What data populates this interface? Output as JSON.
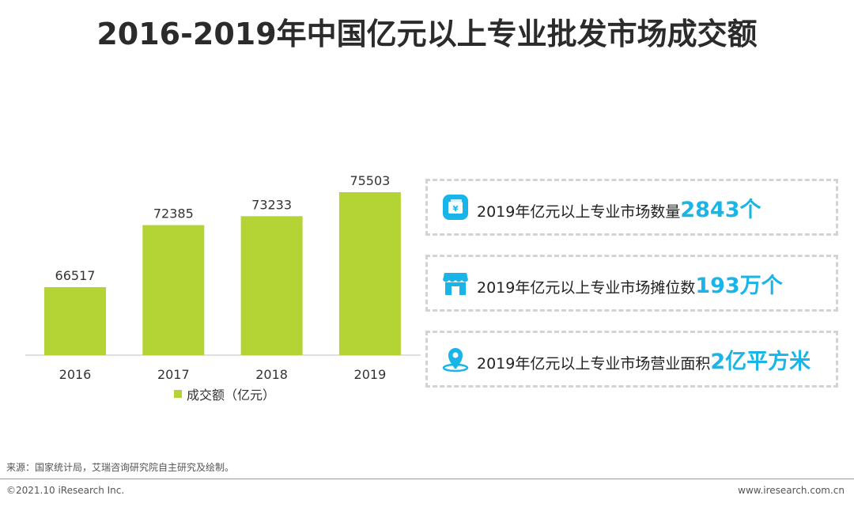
{
  "title": "2016-2019年中国亿元以上专业批发市场成交额",
  "colors": {
    "bar": "#b4d334",
    "accent": "#1ab5e8",
    "border": "#d3d3d3"
  },
  "chart_data": {
    "type": "bar",
    "categories": [
      "2016",
      "2017",
      "2018",
      "2019"
    ],
    "series": [
      {
        "name": "成交额（亿元）",
        "values": [
          66517,
          72385,
          73233,
          75503
        ]
      }
    ],
    "value_labels": [
      "66517",
      "72385",
      "73233",
      "75503"
    ],
    "xlabel": "",
    "ylabel": "",
    "grid": false,
    "legend": "bottom"
  },
  "legend": {
    "label": "成交额（亿元）"
  },
  "stats": [
    {
      "icon": "wallet-icon",
      "text": "2019年亿元以上专业市场数量",
      "highlight": "2843个"
    },
    {
      "icon": "storefront-icon",
      "text": "2019年亿元以上专业市场摊位数",
      "highlight": "193万个"
    },
    {
      "icon": "location-pin-icon",
      "text": "2019年亿元以上专业市场营业面积",
      "highlight": "2亿平方米"
    }
  ],
  "footer": {
    "source": "来源：国家统计局，艾瑞咨询研究院自主研究及绘制。",
    "copyright": "©2021.10 iResearch Inc.",
    "website": "www.iresearch.com.cn"
  }
}
